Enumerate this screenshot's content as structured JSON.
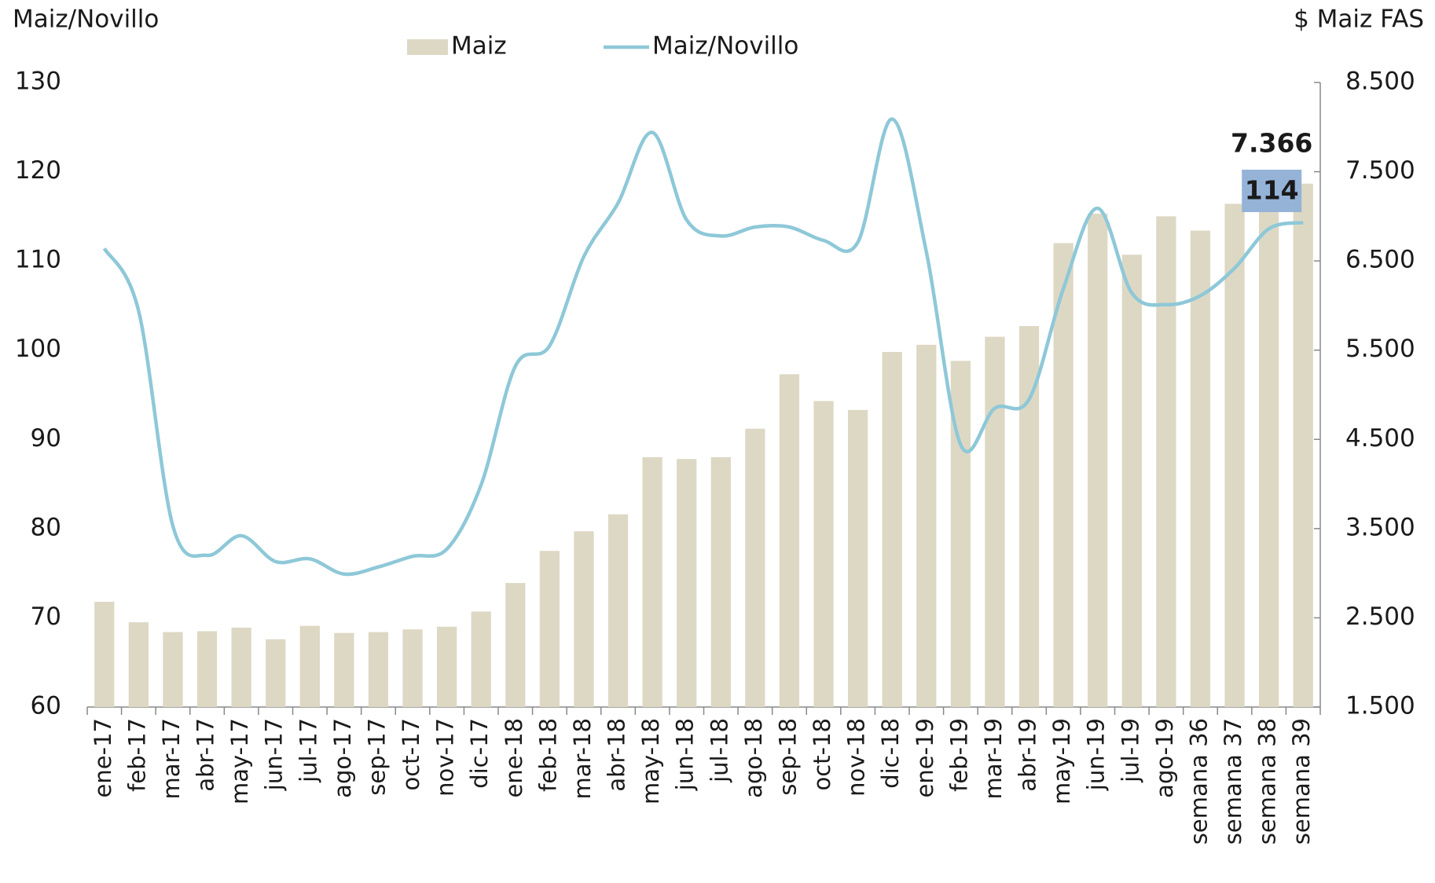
{
  "chart_data": {
    "type": "bar-line",
    "y_label": "Maiz/Novillo",
    "y2_label": "$ Maiz FAS",
    "categories": [
      "ene-17",
      "feb-17",
      "mar-17",
      "abr-17",
      "may-17",
      "jun-17",
      "jul-17",
      "ago-17",
      "sep-17",
      "oct-17",
      "nov-17",
      "dic-17",
      "ene-18",
      "feb-18",
      "mar-18",
      "abr-18",
      "may-18",
      "jun-18",
      "jul-18",
      "ago-18",
      "sep-18",
      "oct-18",
      "nov-18",
      "dic-18",
      "ene-19",
      "feb-19",
      "mar-19",
      "abr-19",
      "may-19",
      "jun-19",
      "jul-19",
      "ago-19",
      "semana 36",
      "semana 37",
      "semana 38",
      "semana 39"
    ],
    "series": [
      {
        "name": "Maiz",
        "type": "bar",
        "axis": "y2",
        "color": "#ddd8c4",
        "values": [
          2680,
          2450,
          2340,
          2350,
          2390,
          2260,
          2410,
          2330,
          2340,
          2370,
          2400,
          2570,
          2890,
          3250,
          3470,
          3660,
          4300,
          4280,
          4300,
          4620,
          5230,
          4930,
          4830,
          5480,
          5560,
          5380,
          5650,
          5770,
          6700,
          7030,
          6570,
          7000,
          6840,
          7140,
          7250,
          7366
        ],
        "value_labels": [
          null,
          null,
          null,
          null,
          null,
          null,
          null,
          null,
          null,
          null,
          null,
          null,
          null,
          null,
          null,
          null,
          null,
          null,
          null,
          null,
          null,
          null,
          null,
          null,
          null,
          null,
          null,
          null,
          null,
          null,
          null,
          null,
          null,
          null,
          null,
          "7.366"
        ]
      },
      {
        "name": "Maiz/Novillo",
        "type": "line",
        "axis": "y",
        "color": "#8ec8d8",
        "values": [
          111.4,
          104.4,
          80.3,
          77.0,
          79.2,
          76.3,
          76.6,
          74.9,
          75.7,
          76.9,
          77.7,
          84.9,
          98.2,
          100.5,
          110.5,
          116.5,
          124.4,
          114.6,
          112.8,
          113.8,
          113.8,
          112.3,
          112.1,
          125.9,
          111.0,
          89.4,
          93.5,
          94.5,
          106.9,
          115.9,
          106.4,
          105.1,
          106.1,
          109.2,
          113.6,
          114.3
        ],
        "value_labels": [
          null,
          null,
          null,
          null,
          null,
          null,
          null,
          null,
          null,
          null,
          null,
          null,
          null,
          null,
          null,
          null,
          null,
          null,
          null,
          null,
          null,
          null,
          null,
          null,
          null,
          null,
          null,
          null,
          null,
          null,
          null,
          null,
          null,
          null,
          null,
          "114"
        ],
        "label_color": "#95b3d7"
      }
    ],
    "ylim": [
      60,
      130
    ],
    "yticks": [
      60,
      70,
      80,
      90,
      100,
      110,
      120,
      130
    ],
    "y2lim": [
      1500,
      8500
    ],
    "y2ticks": [
      {
        "value": 1500,
        "label": "1.500"
      },
      {
        "value": 2500,
        "label": "2.500"
      },
      {
        "value": 3500,
        "label": "3.500"
      },
      {
        "value": 4500,
        "label": "4.500"
      },
      {
        "value": 5500,
        "label": "5.500"
      },
      {
        "value": 6500,
        "label": "6.500"
      },
      {
        "value": 7500,
        "label": "7.500"
      },
      {
        "value": 8500,
        "label": "8.500"
      }
    ],
    "legend": "top"
  }
}
